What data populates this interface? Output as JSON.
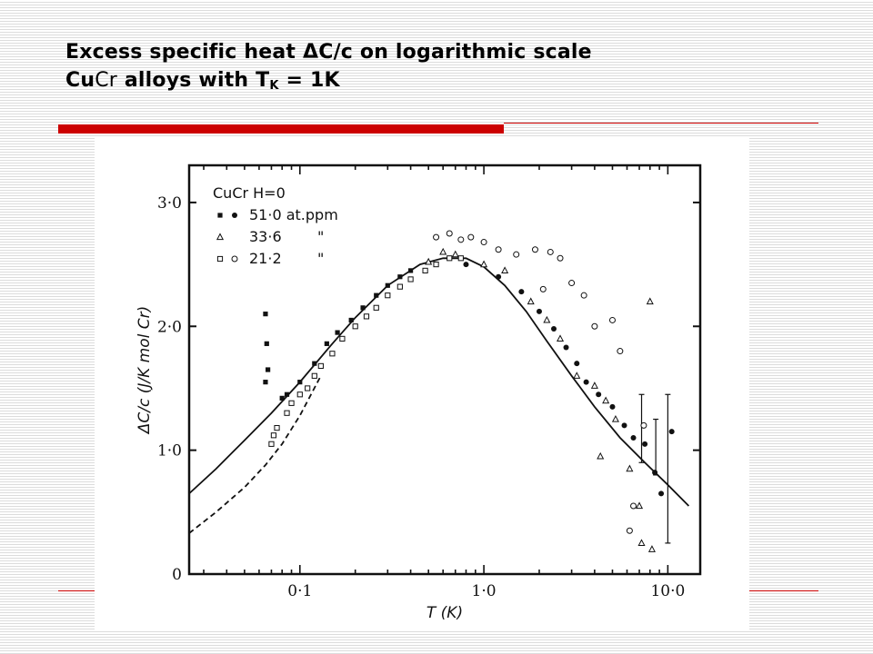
{
  "slide": {
    "title_line1": "Excess specific heat ΔC/c on logarithmic scale",
    "title_line2_bold": "Cu",
    "title_line2_light": "Cr",
    "title_line2_rest": " alloys with T",
    "title_line2_sub": "K",
    "title_line2_end": " = 1K",
    "accent_color": "#cc0000"
  },
  "chart_data": {
    "type": "scatter",
    "title": "",
    "xlabel": "T (K)",
    "ylabel": "ΔC/c  (J/K mol Cr)",
    "x_scale": "log",
    "xlim": [
      0.025,
      15
    ],
    "ylim": [
      0,
      3.3
    ],
    "x_ticks": [
      {
        "value": 0.1,
        "label": "0·1"
      },
      {
        "value": 1.0,
        "label": "1·0"
      },
      {
        "value": 10.0,
        "label": "10·0"
      }
    ],
    "y_ticks": [
      {
        "value": 0,
        "label": "0"
      },
      {
        "value": 1.0,
        "label": "1·0"
      },
      {
        "value": 2.0,
        "label": "2·0"
      },
      {
        "value": 3.0,
        "label": "3·0"
      }
    ],
    "legend": {
      "header": "CuCr  H=0",
      "position": "top-left",
      "entries": [
        {
          "markers": [
            "square-filled",
            "circle-filled"
          ],
          "label": "51·0 at.ppm"
        },
        {
          "markers": [
            "triangle-open"
          ],
          "label": "33·6",
          "ditto": "\""
        },
        {
          "markers": [
            "square-open",
            "circle-open"
          ],
          "label": "21·2",
          "ditto": "\""
        }
      ]
    },
    "curves": [
      {
        "style": "solid",
        "x": [
          0.025,
          0.035,
          0.05,
          0.07,
          0.1,
          0.15,
          0.2,
          0.3,
          0.45,
          0.6,
          0.8,
          1.0,
          1.3,
          1.7,
          2.2,
          3.0,
          4.0,
          5.5,
          7.5,
          10.0,
          13.0
        ],
        "y": [
          0.65,
          0.85,
          1.08,
          1.3,
          1.55,
          1.86,
          2.07,
          2.33,
          2.5,
          2.55,
          2.55,
          2.48,
          2.33,
          2.12,
          1.88,
          1.6,
          1.35,
          1.1,
          0.9,
          0.72,
          0.55
        ]
      },
      {
        "style": "dashed",
        "x": [
          0.025,
          0.035,
          0.05,
          0.065,
          0.08,
          0.1,
          0.13
        ],
        "y": [
          0.33,
          0.5,
          0.7,
          0.88,
          1.05,
          1.28,
          1.6
        ]
      }
    ],
    "series": [
      {
        "label": "51·0 at.ppm",
        "marker": "square-filled",
        "points": [
          [
            0.065,
            2.1
          ],
          [
            0.066,
            1.86
          ],
          [
            0.067,
            1.65
          ],
          [
            0.065,
            1.55
          ],
          [
            0.08,
            1.42
          ],
          [
            0.085,
            1.45
          ],
          [
            0.1,
            1.55
          ],
          [
            0.12,
            1.7
          ],
          [
            0.14,
            1.86
          ],
          [
            0.16,
            1.95
          ],
          [
            0.19,
            2.05
          ],
          [
            0.22,
            2.15
          ],
          [
            0.26,
            2.25
          ],
          [
            0.3,
            2.33
          ],
          [
            0.35,
            2.4
          ],
          [
            0.4,
            2.45
          ]
        ]
      },
      {
        "label": "51·0 at.ppm",
        "marker": "circle-filled",
        "points": [
          [
            0.8,
            2.5
          ],
          [
            1.2,
            2.4
          ],
          [
            1.6,
            2.28
          ],
          [
            2.0,
            2.12
          ],
          [
            2.4,
            1.98
          ],
          [
            2.8,
            1.83
          ],
          [
            3.2,
            1.7
          ],
          [
            3.6,
            1.55
          ],
          [
            4.2,
            1.45
          ],
          [
            5.0,
            1.35
          ],
          [
            5.8,
            1.2
          ],
          [
            6.5,
            1.1
          ],
          [
            7.5,
            1.05
          ],
          [
            8.5,
            0.82
          ],
          [
            9.2,
            0.65
          ],
          [
            10.5,
            1.15
          ]
        ]
      },
      {
        "label": "33·6",
        "marker": "triangle-open",
        "points": [
          [
            0.5,
            2.52
          ],
          [
            0.6,
            2.6
          ],
          [
            0.7,
            2.58
          ],
          [
            1.0,
            2.5
          ],
          [
            1.3,
            2.45
          ],
          [
            1.8,
            2.2
          ],
          [
            2.2,
            2.05
          ],
          [
            2.6,
            1.9
          ],
          [
            3.2,
            1.6
          ],
          [
            4.0,
            1.52
          ],
          [
            4.6,
            1.4
          ],
          [
            5.2,
            1.25
          ],
          [
            4.3,
            0.95
          ],
          [
            6.2,
            0.85
          ],
          [
            7.2,
            0.25
          ],
          [
            8.2,
            0.2
          ],
          [
            8.0,
            2.2
          ],
          [
            7.0,
            0.55
          ]
        ]
      },
      {
        "label": "21·2",
        "marker": "square-open",
        "points": [
          [
            0.07,
            1.05
          ],
          [
            0.072,
            1.12
          ],
          [
            0.075,
            1.18
          ],
          [
            0.085,
            1.3
          ],
          [
            0.09,
            1.38
          ],
          [
            0.1,
            1.45
          ],
          [
            0.11,
            1.5
          ],
          [
            0.12,
            1.6
          ],
          [
            0.13,
            1.68
          ],
          [
            0.15,
            1.78
          ],
          [
            0.17,
            1.9
          ],
          [
            0.2,
            2.0
          ],
          [
            0.23,
            2.08
          ],
          [
            0.26,
            2.15
          ],
          [
            0.3,
            2.25
          ],
          [
            0.35,
            2.32
          ],
          [
            0.4,
            2.38
          ],
          [
            0.48,
            2.45
          ],
          [
            0.55,
            2.5
          ],
          [
            0.65,
            2.55
          ],
          [
            0.75,
            2.55
          ]
        ]
      },
      {
        "label": "21·2",
        "marker": "circle-open",
        "points": [
          [
            0.55,
            2.72
          ],
          [
            0.65,
            2.75
          ],
          [
            0.75,
            2.7
          ],
          [
            0.85,
            2.72
          ],
          [
            1.0,
            2.68
          ],
          [
            1.2,
            2.62
          ],
          [
            1.5,
            2.58
          ],
          [
            1.9,
            2.62
          ],
          [
            2.3,
            2.6
          ],
          [
            2.6,
            2.55
          ],
          [
            2.1,
            2.3
          ],
          [
            3.0,
            2.35
          ],
          [
            3.5,
            2.25
          ],
          [
            4.0,
            2.0
          ],
          [
            5.0,
            2.05
          ],
          [
            5.5,
            1.8
          ],
          [
            6.2,
            0.35
          ],
          [
            6.5,
            0.55
          ],
          [
            7.4,
            1.2
          ]
        ]
      }
    ],
    "error_bars": [
      {
        "x": 7.2,
        "y_low": 0.9,
        "y_high": 1.45
      },
      {
        "x": 8.6,
        "y_low": 0.8,
        "y_high": 1.25
      },
      {
        "x": 10.0,
        "y_low": 0.25,
        "y_high": 1.45
      }
    ]
  }
}
